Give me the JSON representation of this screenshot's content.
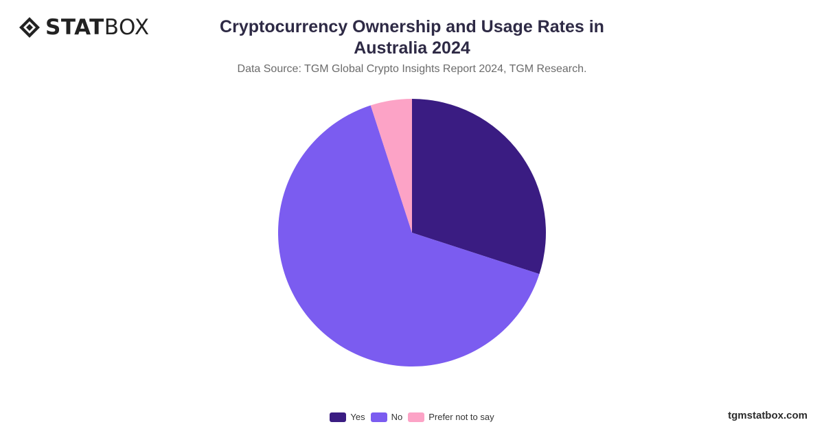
{
  "brand": {
    "logo_bold": "STAT",
    "logo_light": "BOX",
    "logo_icon": "diamond-logo-icon",
    "footer_url": "tgmstatbox.com"
  },
  "chart_data": {
    "type": "pie",
    "title": "Cryptocurrency Ownership and Usage Rates in Australia 2024",
    "subtitle": "Data Source: TGM Global Crypto Insights Report 2024, TGM Research.",
    "categories": [
      "Yes",
      "No",
      "Prefer not to say"
    ],
    "values": [
      30,
      65,
      5
    ],
    "colors": [
      "#3a1c82",
      "#7b5cf0",
      "#fca3c6"
    ],
    "legend_position": "bottom-center",
    "data_labels": false
  }
}
